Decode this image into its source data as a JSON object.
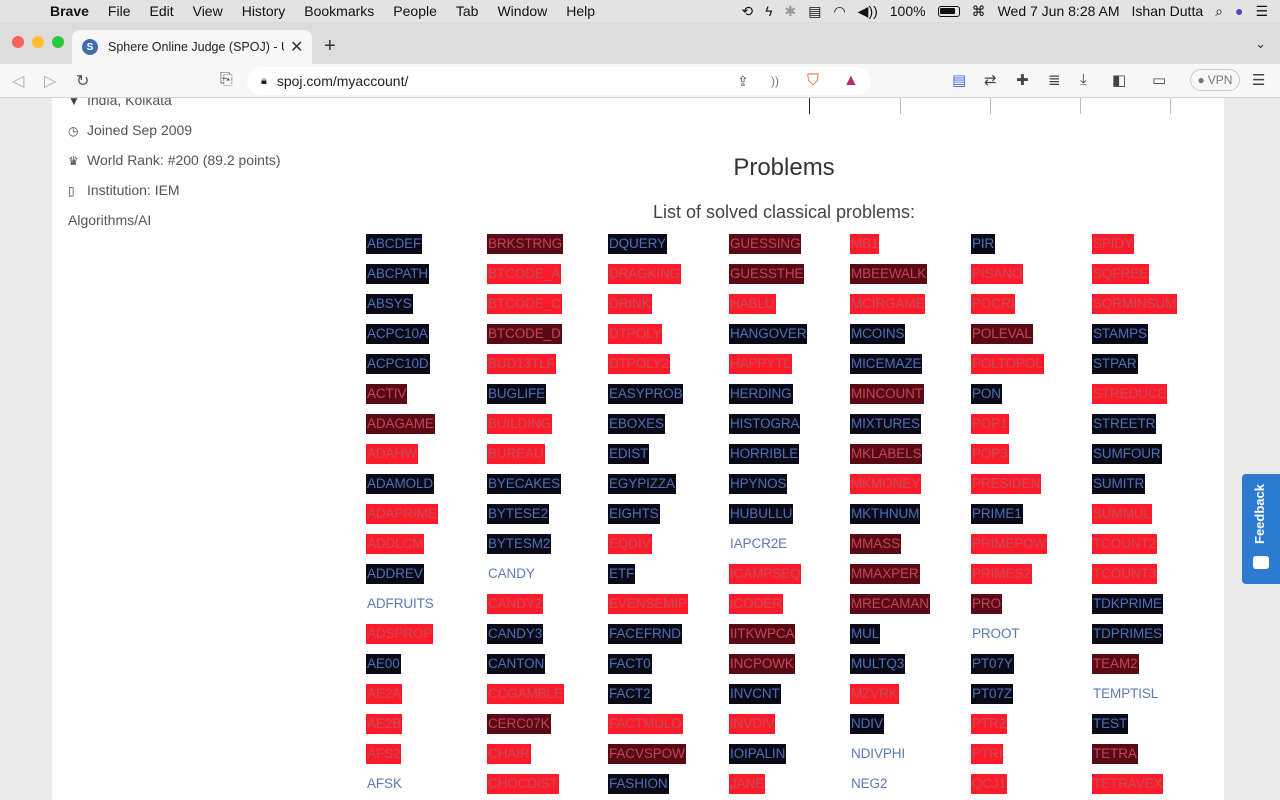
{
  "menubar": {
    "items": [
      "Brave",
      "File",
      "Edit",
      "View",
      "History",
      "Bookmarks",
      "People",
      "Tab",
      "Window",
      "Help"
    ],
    "battery": "100%",
    "datetime": "Wed 7 Jun  8:28 AM",
    "user": "Ishan Dutta"
  },
  "tab": {
    "title": "Sphere Online Judge (SPOJ) - U",
    "favicon_letter": "S"
  },
  "url": "spoj.com/myaccount/",
  "vpn": "VPN",
  "profile": {
    "location": "India, Kolkata",
    "joined": "Joined Sep 2009",
    "rank": "World Rank: #200 (89.2 points)",
    "institution": "Institution: IEM",
    "interests": "Algorithms/AI"
  },
  "problems": {
    "title": "Problems",
    "subtitle": "List of solved classical problems:",
    "columns": [
      [
        [
          "ABCDEF",
          "black"
        ],
        [
          "ABCPATH",
          "black"
        ],
        [
          "ABSYS",
          "black"
        ],
        [
          "ACPC10A",
          "black"
        ],
        [
          "ACPC10D",
          "black"
        ],
        [
          "ACTIV",
          "dark"
        ],
        [
          "ADAGAME",
          "dark"
        ],
        [
          "ADAHW",
          "red"
        ],
        [
          "ADAMOLD",
          "black"
        ],
        [
          "ADAPRIME",
          "red"
        ],
        [
          "ADDLCM",
          "red"
        ],
        [
          "ADDREV",
          "black"
        ],
        [
          "ADFRUITS",
          "none"
        ],
        [
          "ADSPROP",
          "red"
        ],
        [
          "AE00",
          "black"
        ],
        [
          "AE2A",
          "red"
        ],
        [
          "AE2B",
          "red"
        ],
        [
          "AFS2",
          "red"
        ],
        [
          "AFSK",
          "none"
        ]
      ],
      [
        [
          "BRKSTRNG",
          "dark"
        ],
        [
          "BTCODE_A",
          "red"
        ],
        [
          "BTCODE_C",
          "red"
        ],
        [
          "BTCODE_D",
          "dark"
        ],
        [
          "BUD13TLF",
          "red"
        ],
        [
          "BUGLIFE",
          "black"
        ],
        [
          "BUILDING",
          "red"
        ],
        [
          "BUREAU",
          "red"
        ],
        [
          "BYECAKES",
          "black"
        ],
        [
          "BYTESE2",
          "black"
        ],
        [
          "BYTESM2",
          "black"
        ],
        [
          "CANDY",
          "none"
        ],
        [
          "CANDY2",
          "red"
        ],
        [
          "CANDY3",
          "black"
        ],
        [
          "CANTON",
          "black"
        ],
        [
          "CCGAMBLE",
          "red"
        ],
        [
          "CERC07K",
          "dark"
        ],
        [
          "CHAIR",
          "red"
        ],
        [
          "CHOCDIST",
          "red"
        ]
      ],
      [
        [
          "DQUERY",
          "black"
        ],
        [
          "DRAGKING",
          "red"
        ],
        [
          "DRINK",
          "red"
        ],
        [
          "DTPOLY",
          "red"
        ],
        [
          "DTPOLY2",
          "red"
        ],
        [
          "EASYPROB",
          "black"
        ],
        [
          "EBOXES",
          "black"
        ],
        [
          "EDIST",
          "black"
        ],
        [
          "EGYPIZZA",
          "black"
        ],
        [
          "EIGHTS",
          "black"
        ],
        [
          "EQDIV",
          "red"
        ],
        [
          "ETF",
          "black"
        ],
        [
          "EVENSEMIP",
          "red"
        ],
        [
          "FACEFRND",
          "black"
        ],
        [
          "FACT0",
          "black"
        ],
        [
          "FACT2",
          "black"
        ],
        [
          "FACTMULO",
          "red"
        ],
        [
          "FACVSPOW",
          "dark"
        ],
        [
          "FASHION",
          "black"
        ]
      ],
      [
        [
          "GUESSING",
          "dark"
        ],
        [
          "GUESSTHE",
          "dark"
        ],
        [
          "HABLU",
          "red"
        ],
        [
          "HANGOVER",
          "black"
        ],
        [
          "HAPPYTL",
          "red"
        ],
        [
          "HERDING",
          "black"
        ],
        [
          "HISTOGRA",
          "black"
        ],
        [
          "HORRIBLE",
          "black"
        ],
        [
          "HPYNOS",
          "black"
        ],
        [
          "HUBULLU",
          "black"
        ],
        [
          "IAPCR2E",
          "none"
        ],
        [
          "ICAMPSEQ",
          "red"
        ],
        [
          "ICODER",
          "red"
        ],
        [
          "IITKWPCA",
          "dark"
        ],
        [
          "INCPOWK",
          "dark"
        ],
        [
          "INVCNT",
          "black"
        ],
        [
          "INVDIV",
          "red"
        ],
        [
          "IOIPALIN",
          "black"
        ],
        [
          "JANE",
          "red"
        ]
      ],
      [
        [
          "MB1",
          "red"
        ],
        [
          "MBEEWALK",
          "dark"
        ],
        [
          "MCIRGAME",
          "red"
        ],
        [
          "MCOINS",
          "black"
        ],
        [
          "MICEMAZE",
          "black"
        ],
        [
          "MINCOUNT",
          "dark"
        ],
        [
          "MIXTURES",
          "black"
        ],
        [
          "MKLABELS",
          "dark"
        ],
        [
          "MKMONEY",
          "red"
        ],
        [
          "MKTHNUM",
          "black"
        ],
        [
          "MMASS",
          "dark"
        ],
        [
          "MMAXPER",
          "dark"
        ],
        [
          "MRECAMAN",
          "dark"
        ],
        [
          "MUL",
          "black"
        ],
        [
          "MULTQ3",
          "black"
        ],
        [
          "MZVRK",
          "red"
        ],
        [
          "NDIV",
          "black"
        ],
        [
          "NDIVPHI",
          "none"
        ],
        [
          "NEG2",
          "none"
        ]
      ],
      [
        [
          "PIR",
          "black"
        ],
        [
          "PISANO",
          "red"
        ],
        [
          "POCRI",
          "red"
        ],
        [
          "POLEVAL",
          "dark"
        ],
        [
          "POLTOPOL",
          "red"
        ],
        [
          "PON",
          "black"
        ],
        [
          "POP1",
          "red"
        ],
        [
          "POP3",
          "red"
        ],
        [
          "PRESIDEN",
          "red"
        ],
        [
          "PRIME1",
          "black"
        ],
        [
          "PRIMEPOW",
          "red"
        ],
        [
          "PRIMES2",
          "red"
        ],
        [
          "PRO",
          "dark"
        ],
        [
          "PROOT",
          "none"
        ],
        [
          "PT07Y",
          "black"
        ],
        [
          "PT07Z",
          "black"
        ],
        [
          "PTR2",
          "red"
        ],
        [
          "PTRI",
          "red"
        ],
        [
          "QCJ1",
          "red"
        ]
      ],
      [
        [
          "SPIDY",
          "red"
        ],
        [
          "SQFREE",
          "red"
        ],
        [
          "SQRMINSUM",
          "red"
        ],
        [
          "STAMPS",
          "black"
        ],
        [
          "STPAR",
          "black"
        ],
        [
          "STREDUCE",
          "red"
        ],
        [
          "STREETR",
          "black"
        ],
        [
          "SUMFOUR",
          "black"
        ],
        [
          "SUMITR",
          "black"
        ],
        [
          "SUMMUL",
          "red"
        ],
        [
          "TCOUNT2",
          "red"
        ],
        [
          "TCOUNT3",
          "red"
        ],
        [
          "TDKPRIME",
          "black"
        ],
        [
          "TDPRIMES",
          "black"
        ],
        [
          "TEAM2",
          "dark"
        ],
        [
          "TEMPTISL",
          "none"
        ],
        [
          "TEST",
          "black"
        ],
        [
          "TETRA",
          "dark"
        ],
        [
          "TETRAVEX",
          "red"
        ]
      ]
    ]
  },
  "feedback": "Feedback"
}
